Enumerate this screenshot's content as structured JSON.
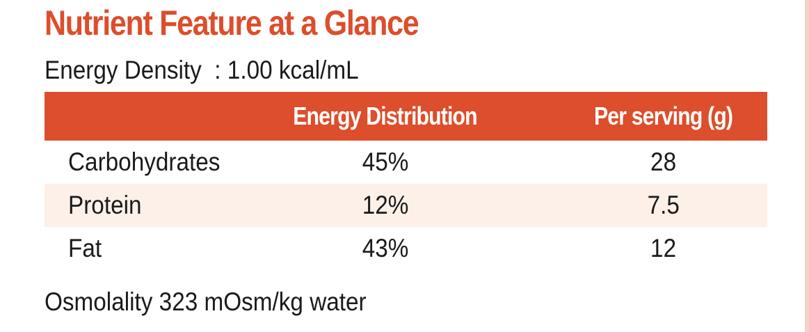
{
  "title": "Nutrient Feature at a Glance",
  "energy_density": "Energy Density  : 1.00 kcal/mL",
  "table": {
    "headers": [
      "",
      "Energy Distribution",
      "Per serving (g)"
    ],
    "rows": [
      {
        "name": "Carbohydrates",
        "distribution": "45%",
        "serving": "28"
      },
      {
        "name": "Protein",
        "distribution": "12%",
        "serving": "7.5"
      },
      {
        "name": "Fat",
        "distribution": "43%",
        "serving": "12"
      }
    ]
  },
  "osmolality": "Osmolality 323 mOsm/kg water",
  "colors": {
    "accent": "#dc4e2c",
    "header_bg": "#dc4e2c",
    "stripe_bg": "#fdf0e8",
    "text": "#1a1a1a",
    "right_rule": "#f3d3c5"
  }
}
